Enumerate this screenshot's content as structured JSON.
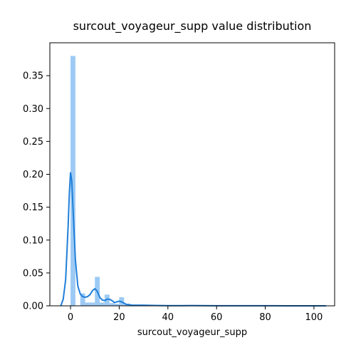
{
  "chart_data": {
    "type": "bar",
    "title": "surcout_voyageur_supp value distribution",
    "xlabel": "surcout_voyageur_supp",
    "ylabel": "",
    "xlim": [
      -8.5,
      108.5
    ],
    "ylim": [
      0,
      0.4
    ],
    "grid": false,
    "x_ticks": [
      0,
      20,
      40,
      60,
      80,
      100
    ],
    "y_ticks": [
      0.0,
      0.05,
      0.1,
      0.15,
      0.2,
      0.25,
      0.3,
      0.35
    ],
    "colors": {
      "bars": "#9ccaf4",
      "kde": "#1f7fd9",
      "axes": "#000000"
    },
    "series": [
      {
        "type": "histogram",
        "bins": [
          {
            "x0": 0,
            "x1": 2,
            "value": 0.38
          },
          {
            "x0": 2,
            "x1": 4,
            "value": 0.0
          },
          {
            "x0": 4,
            "x1": 6,
            "value": 0.019
          },
          {
            "x0": 6,
            "x1": 8,
            "value": 0.005
          },
          {
            "x0": 8,
            "x1": 10,
            "value": 0.005
          },
          {
            "x0": 10,
            "x1": 12,
            "value": 0.044
          },
          {
            "x0": 12,
            "x1": 14,
            "value": 0.005
          },
          {
            "x0": 14,
            "x1": 16,
            "value": 0.017
          },
          {
            "x0": 16,
            "x1": 18,
            "value": 0.004
          },
          {
            "x0": 18,
            "x1": 20,
            "value": 0.003
          },
          {
            "x0": 20,
            "x1": 22,
            "value": 0.013
          },
          {
            "x0": 22,
            "x1": 24,
            "value": 0.002
          },
          {
            "x0": 24,
            "x1": 26,
            "value": 0.002
          },
          {
            "x0": 26,
            "x1": 28,
            "value": 0.001
          },
          {
            "x0": 28,
            "x1": 30,
            "value": 0.001
          }
        ]
      },
      {
        "type": "kde",
        "x": [
          -4,
          -3,
          -2,
          -1,
          -0.5,
          0,
          0.5,
          1,
          2,
          3,
          4,
          5,
          6,
          7,
          8,
          9,
          10,
          11,
          12,
          13,
          14,
          15,
          16,
          17,
          18,
          19,
          20,
          21,
          22,
          23,
          24,
          25,
          27,
          30,
          35,
          40,
          45,
          50,
          55,
          60,
          70,
          80,
          90,
          100,
          105
        ],
        "y": [
          0.0,
          0.01,
          0.04,
          0.12,
          0.17,
          0.203,
          0.19,
          0.15,
          0.07,
          0.03,
          0.018,
          0.014,
          0.013,
          0.014,
          0.017,
          0.023,
          0.026,
          0.022,
          0.013,
          0.009,
          0.008,
          0.01,
          0.01,
          0.008,
          0.005,
          0.006,
          0.007,
          0.006,
          0.004,
          0.002,
          0.002,
          0.001,
          0.001,
          0.001,
          0.0005,
          0.0003,
          0.0003,
          0.0004,
          0.0003,
          0.0002,
          0.0001,
          0.0001,
          0.0,
          0.0,
          0.0
        ]
      }
    ]
  }
}
